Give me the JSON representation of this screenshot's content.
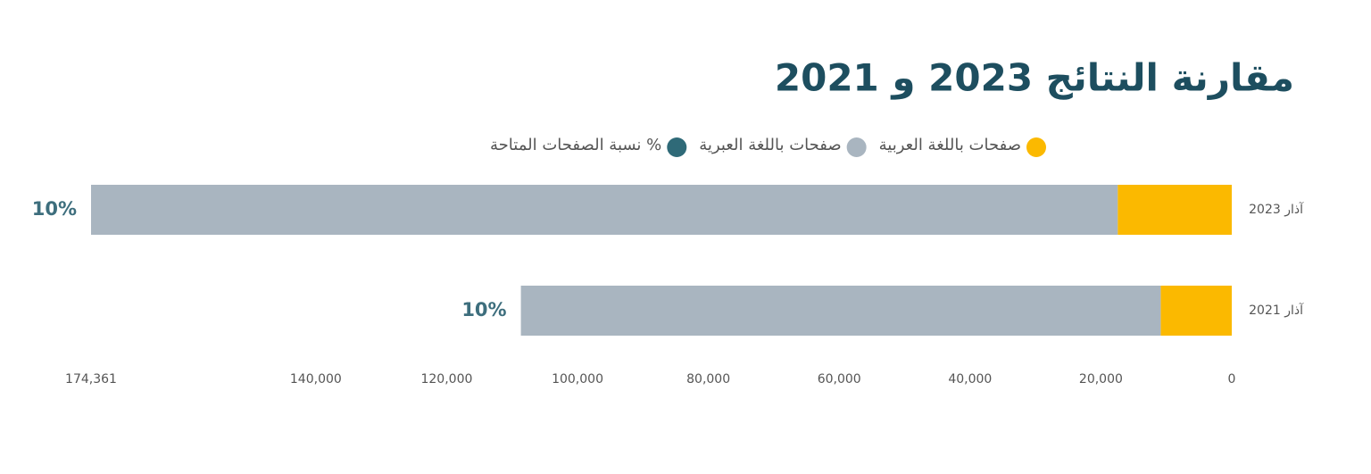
{
  "chart_data": {
    "type": "stacked_barh",
    "title": "مقارنة النتائج 2023 و 2021",
    "categories": [
      "آذار 2023",
      "آذار 2021"
    ],
    "series": [
      {
        "name": "صفحات باللغة العربية",
        "color": "#fbb900",
        "values": [
          17436,
          10866
        ]
      },
      {
        "name": "صفحات باللغة العبرية",
        "color": "#a9b5c0",
        "values": [
          156925,
          97791
        ]
      },
      {
        "name": "% نسبة الصفحات المتاحة",
        "color": "#2f6a78",
        "values": [
          10,
          10
        ],
        "value_labels": [
          "10%",
          "10%"
        ]
      }
    ],
    "xlim": [
      0,
      174361
    ],
    "xticks": [
      0,
      {
        "value": 20000,
        "label": "20,000"
      },
      {
        "value": 40000,
        "label": "40,000"
      },
      {
        "value": 60000,
        "label": "60,000"
      },
      {
        "value": 80000,
        "label": "80,000"
      },
      {
        "value": 100000,
        "label": "100,000"
      },
      {
        "value": 120000,
        "label": "120,000"
      },
      {
        "value": 140000,
        "label": "140,000"
      },
      {
        "value": 174361,
        "label": "174,361"
      }
    ],
    "x_reversed": true,
    "grid": false
  }
}
